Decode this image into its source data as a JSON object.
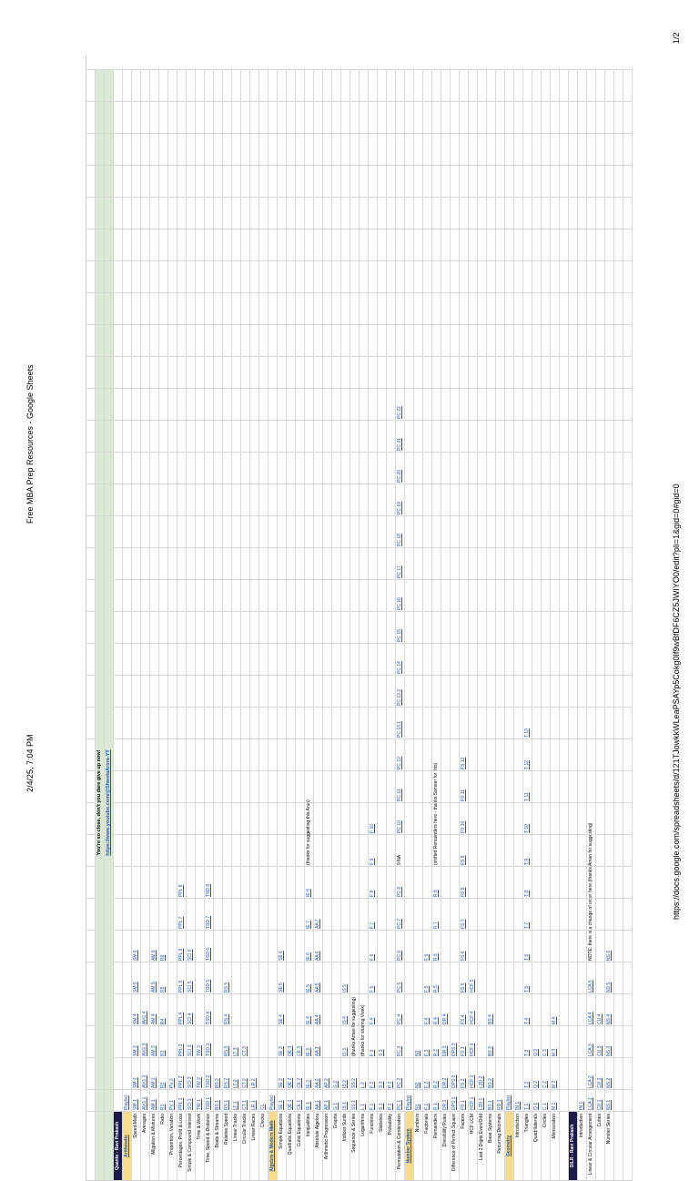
{
  "print_header": {
    "timestamp": "2/4/25, 7:04 PM",
    "title": "Free MBA Prep Resources - Google Sheets",
    "page": "1/2"
  },
  "print_footer": {
    "url": "https://docs.google.com/spreadsheets/d/121TJowkkWLeaPSAYp5Cokg0If9wBfDF6CZ5JWIYO0/edit?pli=1&gid=0#gid=0"
  },
  "banner": {
    "line1": "You're so close, don't you dare give up now!",
    "line2": "https://www.youtube.com/@ShwetaArora-YT"
  },
  "accent_colors": {
    "section_dark": "#1a1a4d",
    "section_gold": "#f7dc8a",
    "banner_green": "#d9ead3",
    "link_blue": "#1155cc"
  },
  "rows": [
    {
      "type": "dark",
      "label": "Quants - Ravi Prakash"
    },
    {
      "type": "gold",
      "label": "Arithmetic",
      "cells": [
        "Playlist"
      ]
    },
    {
      "type": "row",
      "label": "Speed Math",
      "cells": [
        "SM 1",
        "SM 2",
        "SM 3",
        "SM 4",
        "SM 5",
        "SM 6"
      ]
    },
    {
      "type": "row",
      "label": "Averages",
      "cells": [
        "AVG 1",
        "AVG 2",
        "AVG 3",
        "AVG 4"
      ]
    },
    {
      "type": "row",
      "label": "Alligation & Mixtures",
      "cells": [
        "AM 1",
        "AM 2",
        "AM 3",
        "AM 4",
        "AM 5",
        "AM 6"
      ]
    },
    {
      "type": "row",
      "label": "Ratio",
      "cells": [
        "R1",
        "R2",
        "R3",
        "R4",
        "R5",
        "R6"
      ]
    },
    {
      "type": "row",
      "label": "Proportion, Variation",
      "cells": [
        "PV 1",
        "PV 2"
      ]
    },
    {
      "type": "row",
      "label": "Percentages, Profit & Loss",
      "cells": [
        "PPL 1",
        "PPL 2",
        "PPL 3",
        "PPL 4",
        "PPL 5",
        "PPL 6",
        "PPL 7",
        "PPL 8"
      ]
    },
    {
      "type": "row",
      "label": "Simple & Compound Interest",
      "cells": [
        "SCI 1",
        "SCI 2",
        "SCI 3",
        "SCI 4",
        "SCI 5",
        "SCI 6"
      ]
    },
    {
      "type": "row",
      "label": "Time & Work",
      "cells": [
        "TW 1",
        "TW 2",
        "TW 3"
      ]
    },
    {
      "type": "row",
      "label": "Time, Speed & Distance",
      "cells": [
        "TSD 1",
        "TSD 2",
        "TSD 3",
        "TSD 4",
        "TSD 5",
        "TSD 6",
        "TSD 7",
        "TSD 8"
      ]
    },
    {
      "type": "row",
      "label": "Boats & Streams",
      "cells": [
        "BS 1",
        "BS 2"
      ]
    },
    {
      "type": "row",
      "label": "Relative Speed",
      "cells": [
        "RS 1",
        "RS 2",
        "RS 3",
        "RS 4",
        "RS 5"
      ]
    },
    {
      "type": "row",
      "label": "Linear Tracks",
      "cells": [
        "LT 1",
        "LT 2",
        "LT 3"
      ]
    },
    {
      "type": "row",
      "label": "Circular Tracks",
      "cells": [
        "CT 1",
        "CT 2",
        "CT 3"
      ]
    },
    {
      "type": "row",
      "label": "Linear Races",
      "cells": [
        "LR 1",
        "LR 2"
      ]
    },
    {
      "type": "row",
      "label": "Clocks",
      "cells": [
        "CL"
      ]
    },
    {
      "type": "gold",
      "label": "Algebra & Modern Math",
      "cells": [
        "Playlist"
      ]
    },
    {
      "type": "row",
      "label": "Simple Equations",
      "cells": [
        "SE 1",
        "SE 2",
        "SE 3",
        "SE 4",
        "SE 5",
        "SE 6"
      ]
    },
    {
      "type": "row",
      "label": "Quadratic Equations",
      "cells": [
        "QE 1",
        "QE 2",
        "QE 3"
      ]
    },
    {
      "type": "row",
      "label": "Cubic Equations",
      "cells": [
        "CE 1",
        "CE 2",
        "CE 3"
      ]
    },
    {
      "type": "row",
      "label": "Inequalities",
      "cells": [
        "IE 1",
        "IE 2",
        "IE 3",
        "IE 4",
        "IE 5",
        "IE 6",
        "IE 7",
        "IE 8"
      ],
      "note": "(thanks for suggesting this Arun)"
    },
    {
      "type": "row",
      "label": "Absolute Algebra",
      "cells": [
        "AA 1",
        "AA 2",
        "AA 3",
        "AA 4",
        "AA 5",
        "AA 6",
        "AA 7"
      ]
    },
    {
      "type": "row",
      "label": "Arithmetic Progression",
      "cells": [
        "AP 1",
        "AP 2"
      ]
    },
    {
      "type": "row",
      "label": "Graphs",
      "cells": [
        "G 1",
        "G 2"
      ]
    },
    {
      "type": "row",
      "label": "Indices Surds",
      "cells": [
        "IS 1",
        "IS 2",
        "IS 3",
        "IS 4",
        "IS 5"
      ]
    },
    {
      "type": "row",
      "label": "Sequence & Series",
      "cells": [
        "SS 1",
        "SS 2"
      ],
      "note": "(thanks Aman for suggesting)"
    },
    {
      "type": "row",
      "label": "Logarithms",
      "cells": [
        "L 1",
        "L 2"
      ],
      "note": "(thanks for sharing Vivek)"
    },
    {
      "type": "row",
      "label": "Functions",
      "cells": [
        "F 1",
        "F 2",
        "F 3",
        "F 4",
        "F 5",
        "F 6",
        "F 7",
        "F 8",
        "F 9",
        "F 10"
      ]
    },
    {
      "type": "row",
      "label": "Statistics",
      "cells": [
        "S 1",
        "S 2",
        "S 3"
      ]
    },
    {
      "type": "row",
      "label": "Probability",
      "cells": [
        "P 1",
        "P 2"
      ]
    },
    {
      "type": "row",
      "label": "Permutation & Combination",
      "cells": [
        "PC 1",
        "PC 2",
        "PC 3",
        "PC 4",
        "PC 5",
        "PC 6",
        "PC 7",
        "PC 8",
        "9 NA",
        "PC 10",
        "PC 11",
        "PC 12",
        "PC 13.1",
        "PC 13.2",
        "PC 14",
        "PC 15",
        "PC 16",
        "PC 17",
        "PC 18",
        "PC 19",
        "PC 20",
        "PC 21",
        "PC 22"
      ]
    },
    {
      "type": "gold",
      "label": "Number System",
      "cells": [
        "Playlist"
      ]
    },
    {
      "type": "row",
      "label": "Numbers",
      "cells": [
        "N1",
        "N2",
        "N3"
      ]
    },
    {
      "type": "row",
      "label": "Factorials",
      "cells": [
        "F 1",
        "F 2",
        "F 3",
        "F 4",
        "F 5",
        "F 6"
      ]
    },
    {
      "type": "row",
      "label": "Remainders",
      "cells": [
        "R 1",
        "R 2",
        "R 3",
        "R 4",
        "R 5",
        "R 6",
        "R 7",
        "R 8"
      ],
      "note": "(shifted Remainders here - thanks Sameer for this)"
    },
    {
      "type": "row",
      "label": "Divisibility Rules",
      "cells": [
        "DR 1",
        "DR 2",
        "DR 3",
        "DR 4"
      ]
    },
    {
      "type": "row",
      "label": "Difference of Perfect Square",
      "cells": [
        "DPS 1",
        "DPS 2",
        "DPS 3"
      ]
    },
    {
      "type": "row",
      "label": "Factors",
      "cells": [
        "FS 1",
        "FS 2",
        "FS 3",
        "FS 4",
        "FS 5",
        "FS 6",
        "FS 7",
        "FS 8",
        "FS 9",
        "FS 10",
        "FS 11",
        "FS 12"
      ]
    },
    {
      "type": "row",
      "label": "HCF LCM",
      "cells": [
        "HCF 1",
        "HCF 2",
        "HCF 3",
        "HCF 4",
        "HCF 5"
      ]
    },
    {
      "type": "row",
      "label": "Last 2 Digits Even/Odd",
      "cells": [
        "L2D 1",
        "L2D 2"
      ]
    },
    {
      "type": "row",
      "label": "Base Systems",
      "cells": [
        "BS 1",
        "BS 2",
        "BS 3",
        "BS 4"
      ]
    },
    {
      "type": "row",
      "label": "Recurring Decimals",
      "cells": [
        "RD 1"
      ]
    },
    {
      "type": "gold",
      "label": "Geometry",
      "cells": [
        "Playlist"
      ]
    },
    {
      "type": "row",
      "label": "Introduction",
      "cells": [
        "IN 1"
      ]
    },
    {
      "type": "row",
      "label": "Triangles",
      "cells": [
        "T 1",
        "T 2",
        "T 3",
        "T 4",
        "T 5",
        "T 6",
        "T 7",
        "T 8",
        "T 9",
        "T 10",
        "T 11",
        "T 12",
        "T 13"
      ]
    },
    {
      "type": "row",
      "label": "Quadrilaterals",
      "cells": [
        "Q 1",
        "Q 2",
        "Q 3"
      ]
    },
    {
      "type": "row",
      "label": "Circles",
      "cells": [
        "C 1",
        "C 2",
        "C 3"
      ]
    },
    {
      "type": "row",
      "label": "Mensuration",
      "cells": [
        "M 1",
        "M 2",
        "M 3",
        "M 4"
      ]
    },
    {
      "type": "spacer"
    },
    {
      "type": "dark",
      "label": "DILR - Ravi Prakash"
    },
    {
      "type": "row",
      "label": "Introduction",
      "cells": [
        "IN 1"
      ]
    },
    {
      "type": "row",
      "label": "Linear & Circular Arrangement",
      "cells": [
        "LCA 1",
        "LCA 2",
        "LCA 3",
        "LCA 4",
        "LCA 5"
      ],
      "note": "NOTE: there is a change of order here (thanks Aman for suggesting)"
    },
    {
      "type": "row",
      "label": "Cubes",
      "cells": [
        "CU 1",
        "CU 2",
        "CU 3",
        "CU 4"
      ]
    },
    {
      "type": "row",
      "label": "Number Series",
      "cells": [
        "NS 1",
        "NS 2",
        "NS 3",
        "NS 4",
        "NS 5",
        "NS 6"
      ]
    }
  ]
}
